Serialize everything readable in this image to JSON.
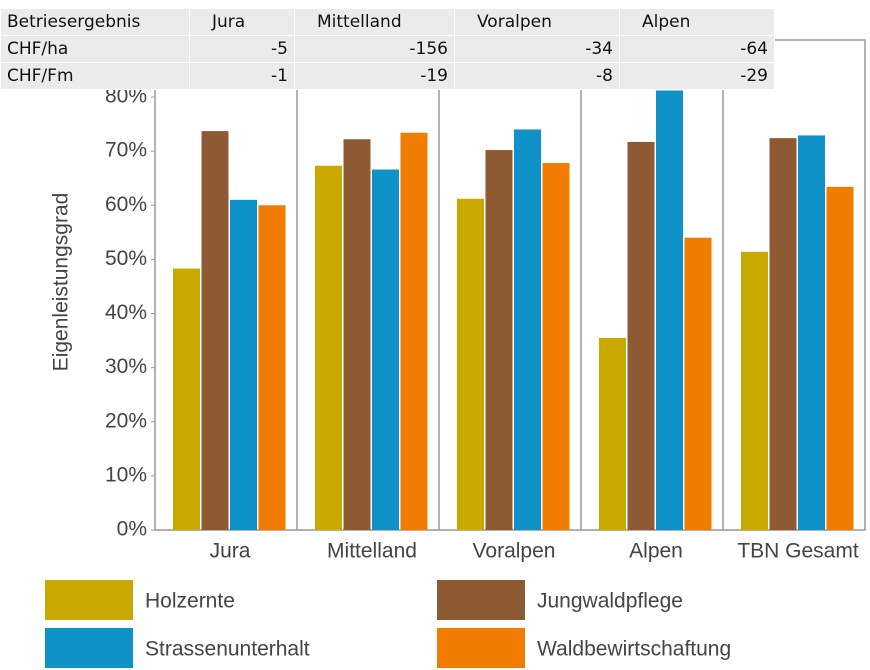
{
  "table": {
    "header": [
      "Betriesergebnis",
      "Jura",
      "Mittelland",
      "Voralpen",
      "Alpen"
    ],
    "rows": [
      [
        "CHF/ha",
        -5,
        -156,
        -34,
        -64
      ],
      [
        "CHF/Fm",
        -1,
        -19,
        -8,
        -29
      ]
    ]
  },
  "chart_data": {
    "type": "bar",
    "y_label": "Eigenleistungsgrad",
    "categories": [
      "Jura",
      "Mittelland",
      "Voralpen",
      "Alpen",
      "TBN Gesamt"
    ],
    "series": [
      {
        "name": "Holzernte",
        "color": "#c9a800",
        "values": [
          48.3,
          67.3,
          61.2,
          35.5,
          51.4
        ]
      },
      {
        "name": "Jungwaldpflege",
        "color": "#8e5a34",
        "values": [
          73.7,
          72.2,
          70.2,
          71.7,
          72.4
        ]
      },
      {
        "name": "Strassenunterhalt",
        "color": "#0e92c8",
        "values": [
          61,
          66.6,
          74,
          81.2,
          72.9
        ]
      },
      {
        "name": "Waldbewirtschaftung",
        "color": "#f07c00",
        "values": [
          60,
          73.4,
          67.8,
          54,
          63.4
        ]
      }
    ],
    "ylim": [
      0,
      80
    ],
    "yticks": [
      {
        "value": 0,
        "label": "0%"
      },
      {
        "value": 10,
        "label": "10%"
      },
      {
        "value": 20,
        "label": "20%"
      },
      {
        "value": 30,
        "label": "30%"
      },
      {
        "value": 40,
        "label": "40%"
      },
      {
        "value": 50,
        "label": "50%"
      },
      {
        "value": 60,
        "label": "60%"
      },
      {
        "value": 70,
        "label": "70%"
      },
      {
        "value": 80,
        "label": "80%"
      }
    ]
  }
}
